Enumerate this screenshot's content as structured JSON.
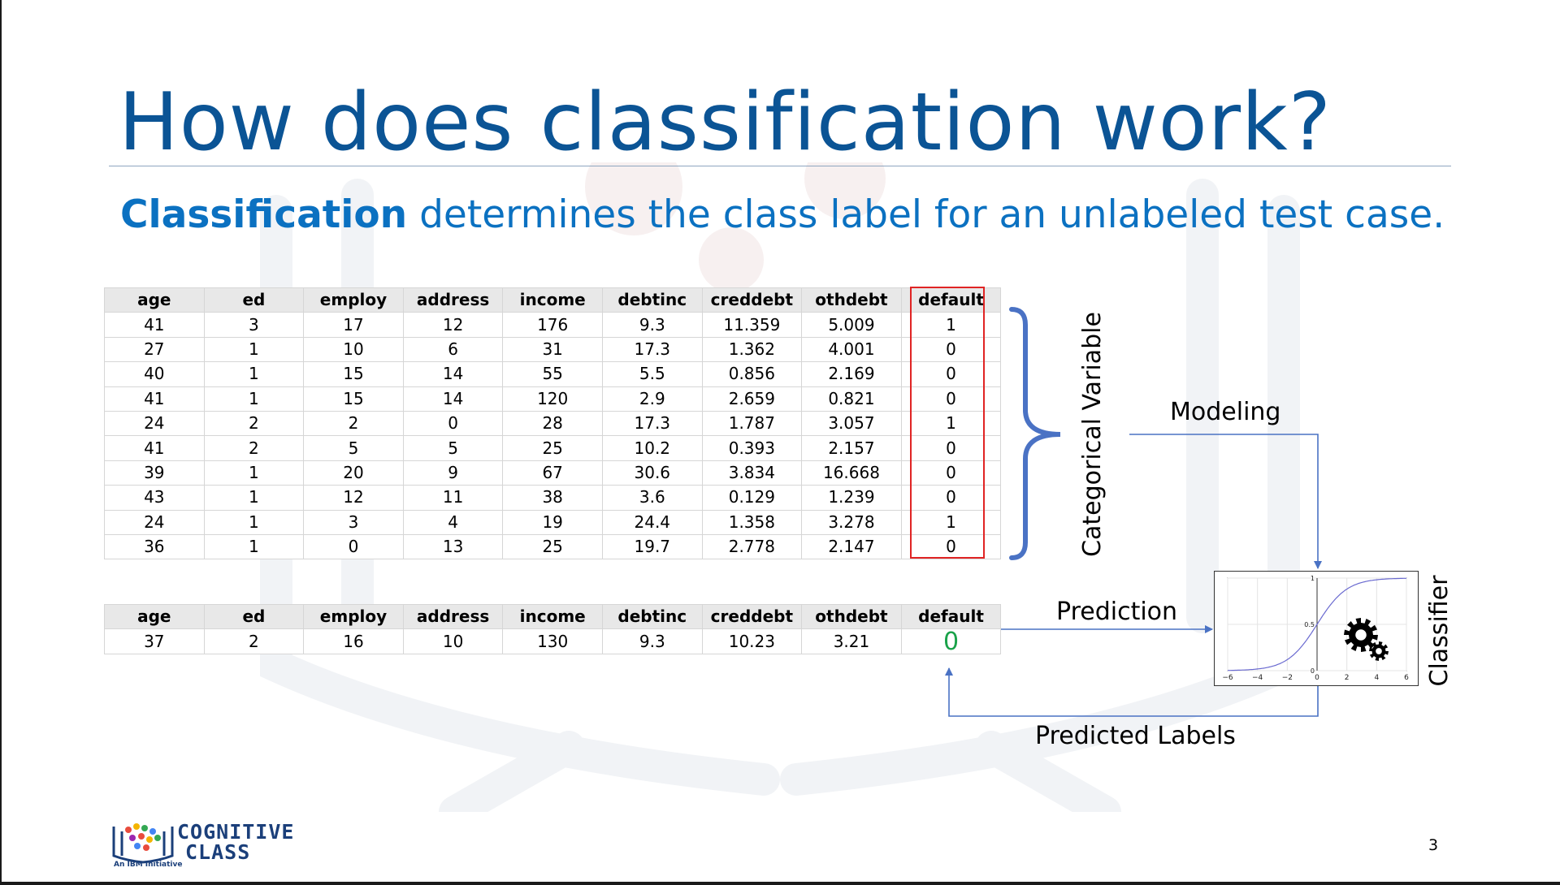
{
  "slide": {
    "title": "How does classification work?",
    "subtitle_bold": "Classification",
    "subtitle_rest": " determines the class label for an unlabeled test case.",
    "page_number": "3"
  },
  "columns": [
    "age",
    "ed",
    "employ",
    "address",
    "income",
    "debtinc",
    "creddebt",
    "othdebt",
    "default"
  ],
  "train_rows": [
    [
      "41",
      "3",
      "17",
      "12",
      "176",
      "9.3",
      "11.359",
      "5.009",
      "1"
    ],
    [
      "27",
      "1",
      "10",
      "6",
      "31",
      "17.3",
      "1.362",
      "4.001",
      "0"
    ],
    [
      "40",
      "1",
      "15",
      "14",
      "55",
      "5.5",
      "0.856",
      "2.169",
      "0"
    ],
    [
      "41",
      "1",
      "15",
      "14",
      "120",
      "2.9",
      "2.659",
      "0.821",
      "0"
    ],
    [
      "24",
      "2",
      "2",
      "0",
      "28",
      "17.3",
      "1.787",
      "3.057",
      "1"
    ],
    [
      "41",
      "2",
      "5",
      "5",
      "25",
      "10.2",
      "0.393",
      "2.157",
      "0"
    ],
    [
      "39",
      "1",
      "20",
      "9",
      "67",
      "30.6",
      "3.834",
      "16.668",
      "0"
    ],
    [
      "43",
      "1",
      "12",
      "11",
      "38",
      "3.6",
      "0.129",
      "1.239",
      "0"
    ],
    [
      "24",
      "1",
      "3",
      "4",
      "19",
      "24.4",
      "1.358",
      "3.278",
      "1"
    ],
    [
      "36",
      "1",
      "0",
      "13",
      "25",
      "19.7",
      "2.778",
      "2.147",
      "0"
    ]
  ],
  "test_row": [
    "37",
    "2",
    "16",
    "10",
    "130",
    "9.3",
    "10.23",
    "3.21",
    "0"
  ],
  "labels": {
    "categorical_variable": "Categorical Variable",
    "modeling": "Modeling",
    "prediction": "Prediction",
    "predicted_labels": "Predicted Labels",
    "classifier": "Classifier"
  },
  "classifier_plot": {
    "type": "line",
    "curve": "sigmoid",
    "x_ticks": [
      "−6",
      "−4",
      "−2",
      "0",
      "2",
      "4",
      "6"
    ],
    "y_ticks": [
      "0",
      "0.5",
      "1"
    ],
    "xlim": [
      -6,
      6
    ],
    "ylim": [
      0,
      1
    ],
    "grid": true,
    "icon": "gears-icon"
  },
  "logo": {
    "line1": "COGNITIVE",
    "line2": "CLASS",
    "tagline": "An IBM Initiative"
  },
  "colors": {
    "title": "#0b5495",
    "subtitle": "#0b71c1",
    "brace": "#4a72c4",
    "arrow": "#4a72c4",
    "highlight_box": "#e02424",
    "predicted_value": "#1aa24a"
  }
}
